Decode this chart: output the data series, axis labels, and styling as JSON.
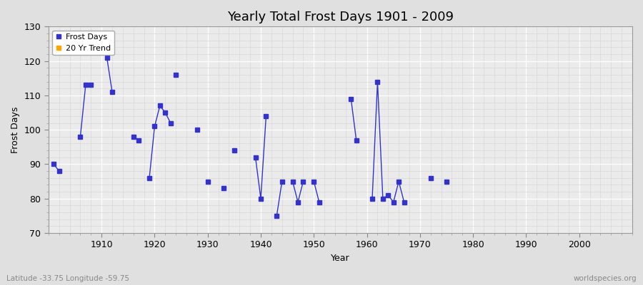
{
  "title": "Yearly Total Frost Days 1901 - 2009",
  "xlabel": "Year",
  "ylabel": "Frost Days",
  "subtitle": "Latitude -33.75 Longitude -59.75",
  "watermark": "worldspecies.org",
  "ylim": [
    70,
    130
  ],
  "xlim": [
    1900,
    2010
  ],
  "yticks": [
    70,
    80,
    90,
    100,
    110,
    120,
    130
  ],
  "xticks": [
    1910,
    1920,
    1930,
    1940,
    1950,
    1960,
    1970,
    1980,
    1990,
    2000
  ],
  "line_segments": [
    {
      "x": [
        1901,
        1902
      ],
      "y": [
        90,
        88
      ]
    },
    {
      "x": [
        1906,
        1907,
        1908
      ],
      "y": [
        98,
        113,
        113
      ]
    },
    {
      "x": [
        1911,
        1912
      ],
      "y": [
        121,
        111
      ]
    },
    {
      "x": [
        1916,
        1917
      ],
      "y": [
        98,
        97
      ]
    },
    {
      "x": [
        1919,
        1920,
        1921,
        1922,
        1923
      ],
      "y": [
        86,
        101,
        107,
        105,
        102
      ]
    },
    {
      "x": [
        1939,
        1940,
        1941
      ],
      "y": [
        92,
        80,
        104
      ]
    },
    {
      "x": [
        1943,
        1944
      ],
      "y": [
        75,
        85
      ]
    },
    {
      "x": [
        1946,
        1947,
        1948
      ],
      "y": [
        85,
        79,
        85
      ]
    },
    {
      "x": [
        1950,
        1951
      ],
      "y": [
        85,
        79
      ]
    },
    {
      "x": [
        1957,
        1958
      ],
      "y": [
        109,
        97
      ]
    },
    {
      "x": [
        1961,
        1962,
        1963,
        1964,
        1965,
        1966,
        1967
      ],
      "y": [
        80,
        114,
        80,
        81,
        79,
        85,
        79
      ]
    }
  ],
  "scatter_only_x": [
    1924,
    1928,
    1930,
    1933,
    1935,
    1972,
    1975
  ],
  "scatter_only_y": [
    116,
    100,
    85,
    83,
    94,
    86,
    85
  ],
  "line_color": "#3333cc",
  "scatter_color": "#3333cc",
  "trend_color": "#ffa500",
  "bg_color": "#e0e0e0",
  "plot_bg_color": "#ebebeb",
  "grid_major_color": "#ffffff",
  "grid_minor_color": "#d8d8d8",
  "title_fontsize": 13,
  "axis_label_fontsize": 9,
  "tick_fontsize": 9,
  "legend_fontsize": 8,
  "linewidth": 1.0,
  "markersize": 4
}
